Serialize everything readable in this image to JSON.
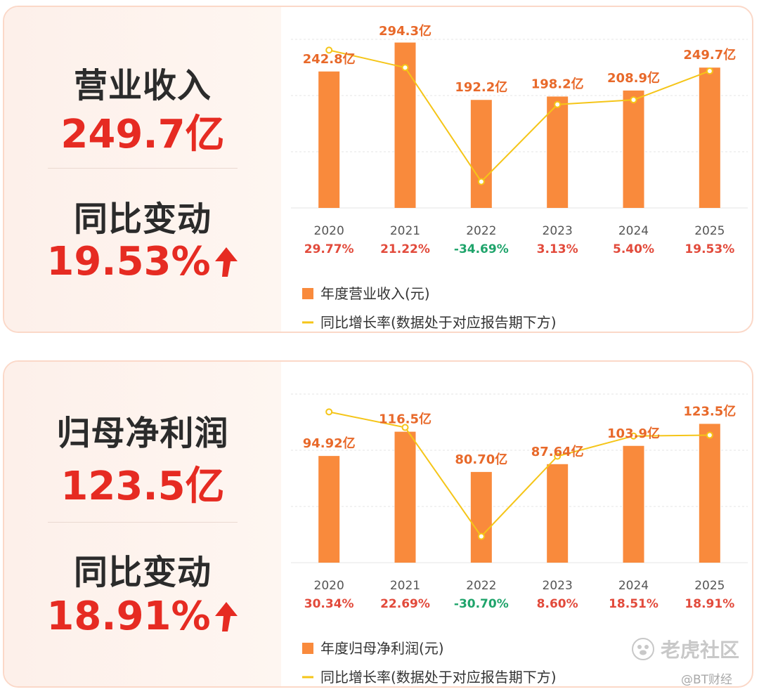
{
  "colors": {
    "bar": "#f98a3c",
    "line": "#f5c518",
    "positive": "#e24a3b",
    "negative": "#1fa46b",
    "bar_label": "#e8692a",
    "accent_red": "#e62b22"
  },
  "panels": [
    {
      "metric_title": "营业收入",
      "metric_value": "249.7亿",
      "change_title": "同比变动",
      "change_value": "19.53%",
      "arrow_icon": "up-arrow-icon",
      "chart_data": {
        "type": "bar",
        "categories": [
          "2020",
          "2021",
          "2022",
          "2023",
          "2024",
          "2025"
        ],
        "series": [
          {
            "name": "年度营业收入(元)",
            "type": "bar",
            "values": [
              242.8,
              294.3,
              192.2,
              198.2,
              208.9,
              249.7
            ],
            "labels": [
              "242.8亿",
              "294.3亿",
              "192.2亿",
              "198.2亿",
              "208.9亿",
              "249.7亿"
            ]
          },
          {
            "name": "同比增长率(数据处于对应报告期下方)",
            "type": "line",
            "values": [
              29.77,
              21.22,
              -34.69,
              3.13,
              5.4,
              19.53
            ],
            "labels": [
              "29.77%",
              "21.22%",
              "-34.69%",
              "3.13%",
              "5.40%",
              "19.53%"
            ]
          }
        ],
        "ylim": [
          0,
          300
        ],
        "growth_range": [
          -40,
          33
        ],
        "grid": true,
        "legend": "bottom"
      }
    },
    {
      "metric_title": "归母净利润",
      "metric_value": "123.5亿",
      "change_title": "同比变动",
      "change_value": "18.91%",
      "arrow_icon": "up-arrow-icon",
      "chart_data": {
        "type": "bar",
        "categories": [
          "2020",
          "2021",
          "2022",
          "2023",
          "2024",
          "2025"
        ],
        "series": [
          {
            "name": "年度归母净利润(元)",
            "type": "bar",
            "values": [
              94.92,
              116.5,
              80.7,
              87.64,
              103.9,
              123.5
            ],
            "labels": [
              "94.92亿",
              "116.5亿",
              "80.70亿",
              "87.64亿",
              "103.9亿",
              "123.5亿"
            ]
          },
          {
            "name": "同比增长率(数据处于对应报告期下方)",
            "type": "line",
            "values": [
              30.34,
              22.69,
              -30.7,
              8.6,
              18.51,
              18.91
            ],
            "labels": [
              "30.34%",
              "22.69%",
              "-30.70%",
              "8.60%",
              "18.51%",
              "18.91%"
            ]
          }
        ],
        "ylim": [
          0,
          150
        ],
        "growth_range": [
          -36,
          37
        ],
        "grid": true,
        "legend": "bottom"
      }
    }
  ],
  "watermark": {
    "icon": "paw-logo-icon",
    "text": "老虎社区",
    "sub": "@BT财经"
  }
}
